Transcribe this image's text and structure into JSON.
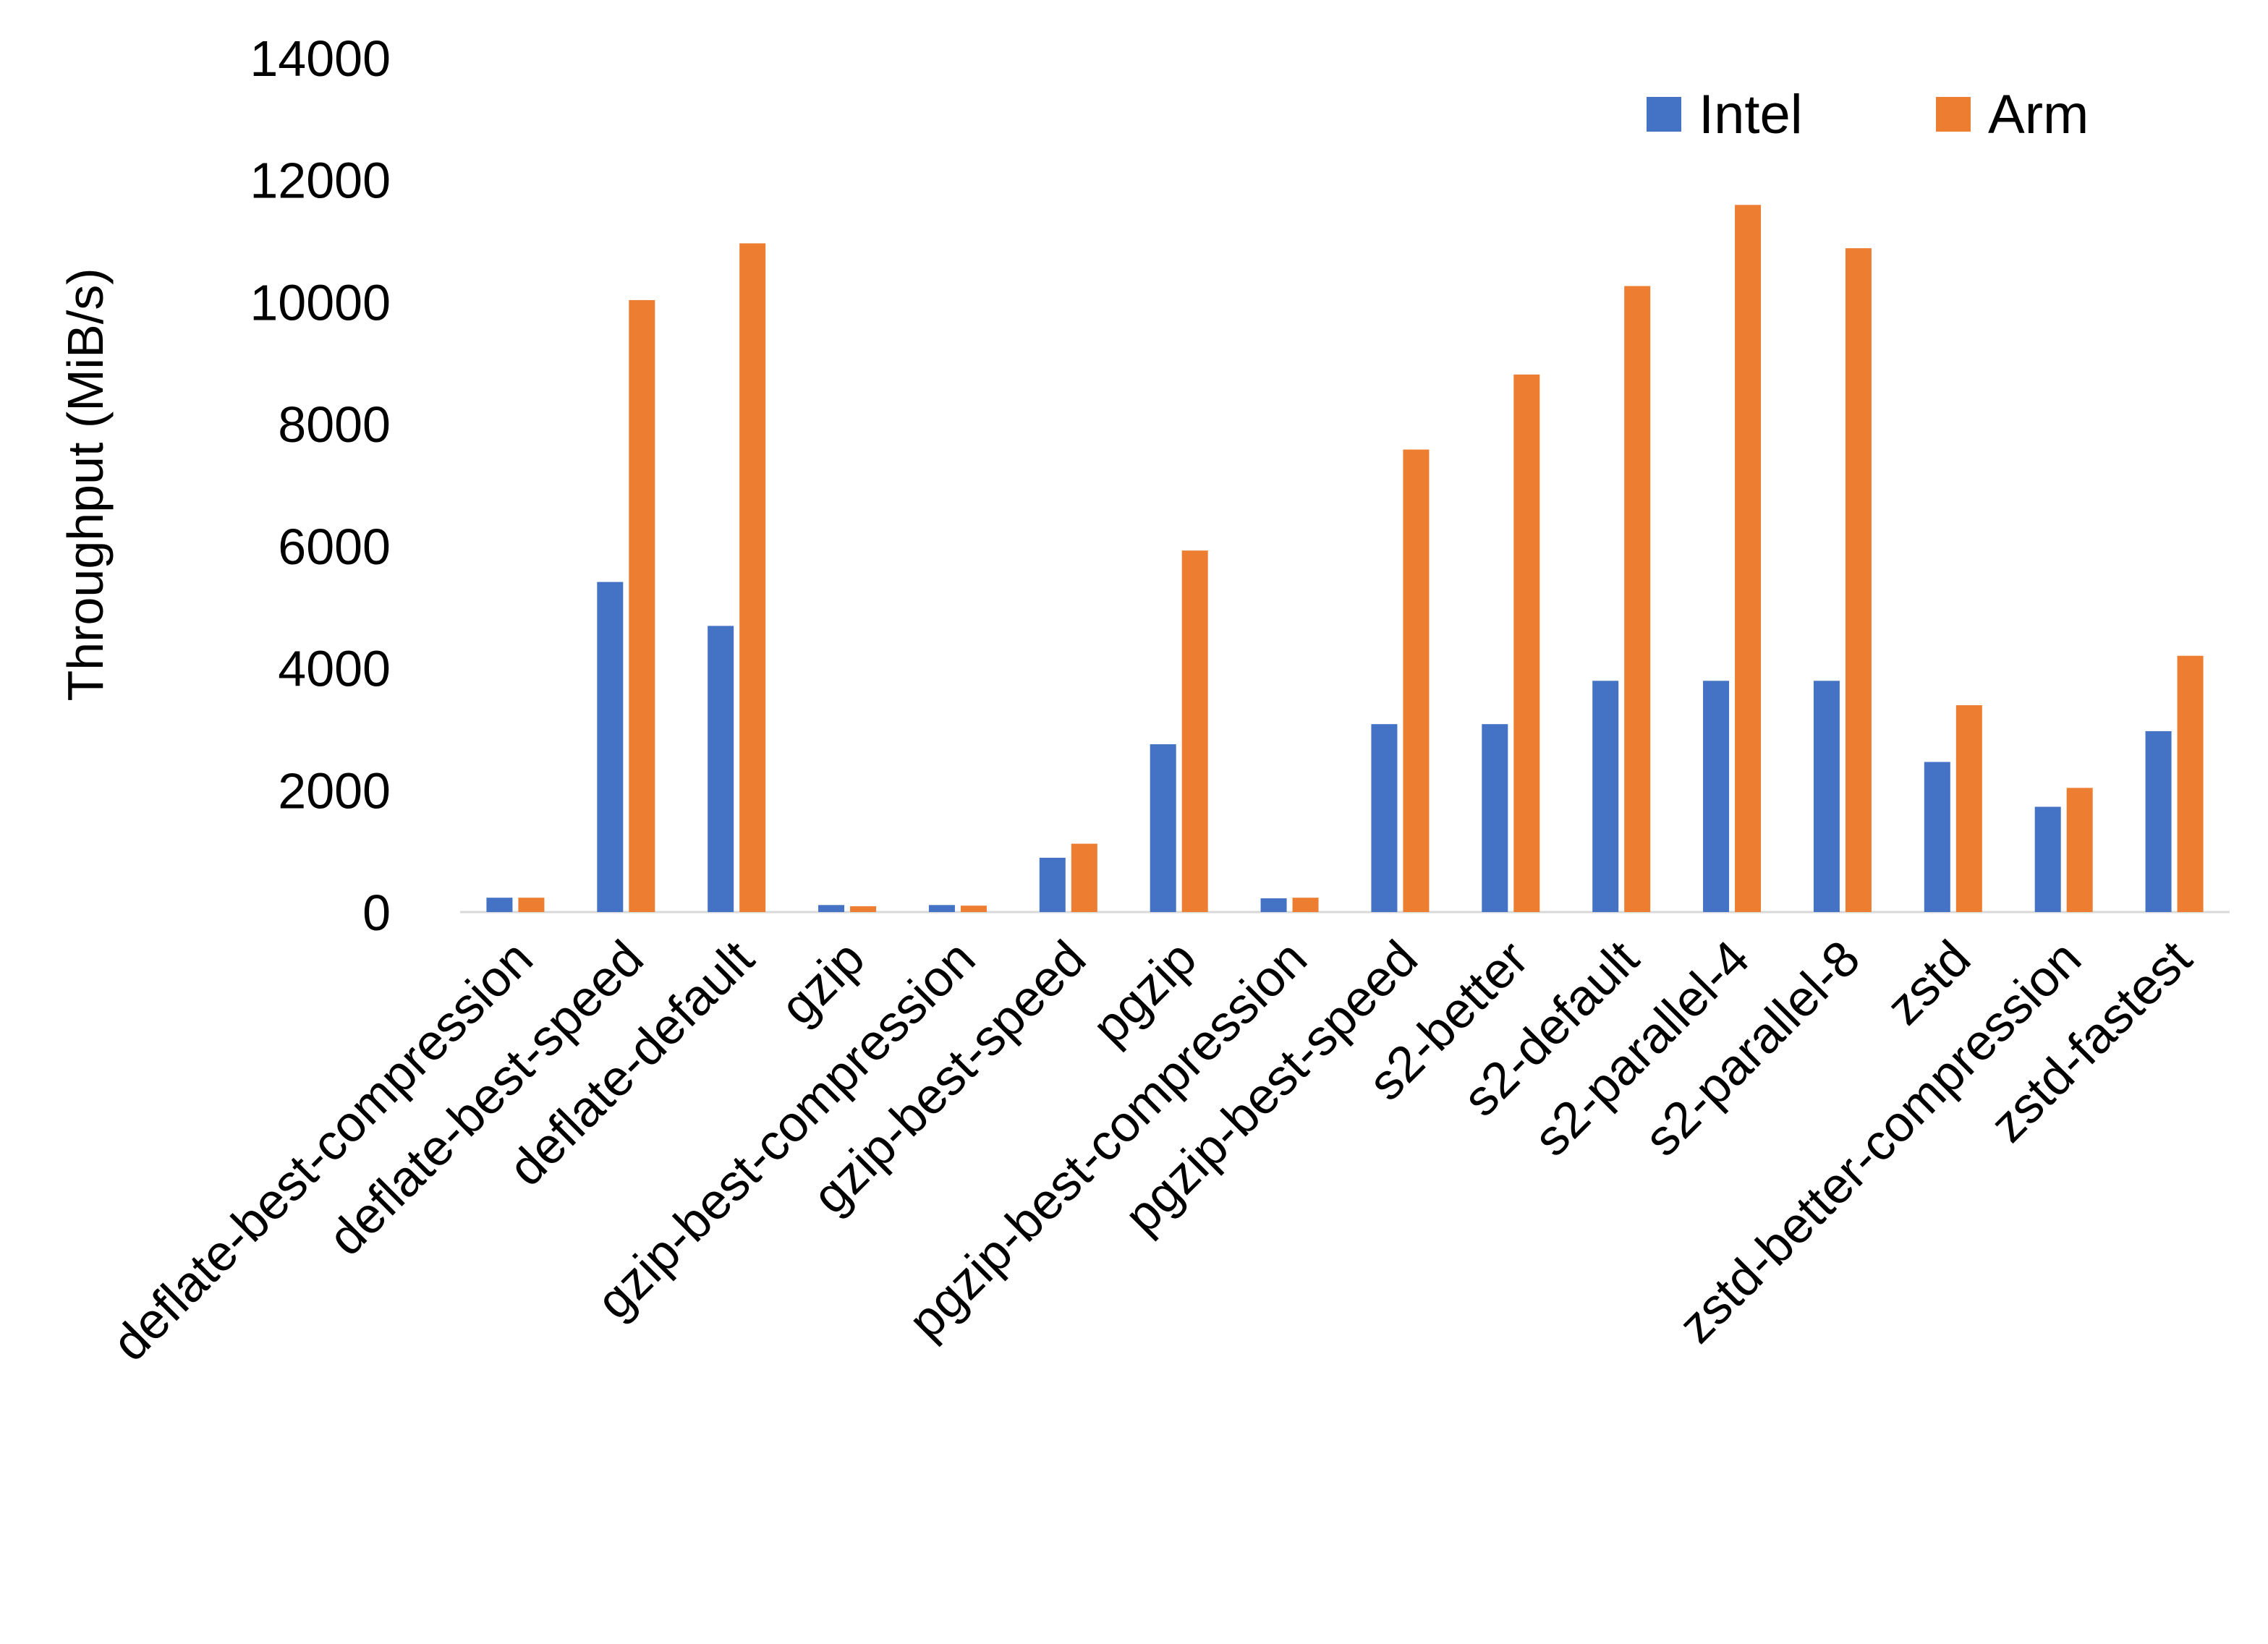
{
  "chart_data": {
    "type": "bar",
    "title": "",
    "xlabel": "",
    "ylabel": "Throughput (MiB/s)",
    "ylim": [
      0,
      14000
    ],
    "yticks": [
      0,
      2000,
      4000,
      6000,
      8000,
      10000,
      12000,
      14000
    ],
    "grid": false,
    "legend_position": "top-right",
    "categories": [
      "deflate-best-compression",
      "deflate-best-speed",
      "deflate-default",
      "gzip",
      "gzip-best-compression",
      "gzip-best-speed",
      "pgzip",
      "pgzip-best-compression",
      "pgzip-best-speed",
      "s2-better",
      "s2-default",
      "s2-parallel-4",
      "s2-parallel-8",
      "zstd",
      "zstd-better-compression",
      "zstd-fastest"
    ],
    "series": [
      {
        "name": "Intel",
        "color": "#4472C4",
        "values": [
          235,
          5410,
          4690,
          115,
          115,
          890,
          2750,
          225,
          3080,
          3080,
          3790,
          3790,
          3790,
          2460,
          1725,
          2965
        ]
      },
      {
        "name": "Arm",
        "color": "#ED7D31",
        "values": [
          235,
          10030,
          10960,
          95,
          105,
          1120,
          5925,
          235,
          7580,
          8810,
          10260,
          11590,
          10880,
          3390,
          2035,
          4200
        ]
      }
    ]
  }
}
